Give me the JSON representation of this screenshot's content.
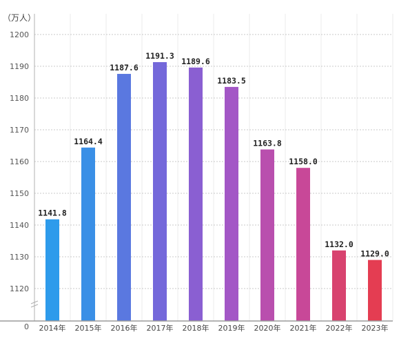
{
  "chart_data": {
    "type": "bar",
    "title": "",
    "unit_label": "（万人）",
    "categories": [
      "2014年",
      "2015年",
      "2016年",
      "2017年",
      "2018年",
      "2019年",
      "2020年",
      "2021年",
      "2022年",
      "2023年"
    ],
    "values": [
      1141.8,
      1164.4,
      1187.6,
      1191.3,
      1189.6,
      1183.5,
      1163.8,
      1158.0,
      1132.0,
      1129.0
    ],
    "value_labels": [
      "1141.8",
      "1164.4",
      "1187.6",
      "1191.3",
      "1189.6",
      "1183.5",
      "1163.8",
      "1158.0",
      "1132.0",
      "1129.0"
    ],
    "y_ticks": [
      1120,
      1130,
      1140,
      1150,
      1160,
      1170,
      1180,
      1190,
      1200
    ],
    "y_zero_label": "0",
    "ylim": [
      1110,
      1205
    ],
    "axis_break": true,
    "grid": true,
    "bar_colors": [
      "#2E9BEB",
      "#3A8FE6",
      "#5A78E0",
      "#7468DA",
      "#8A5FD2",
      "#A357C6",
      "#B94FAE",
      "#C84898",
      "#D8436F",
      "#E43D52"
    ]
  }
}
